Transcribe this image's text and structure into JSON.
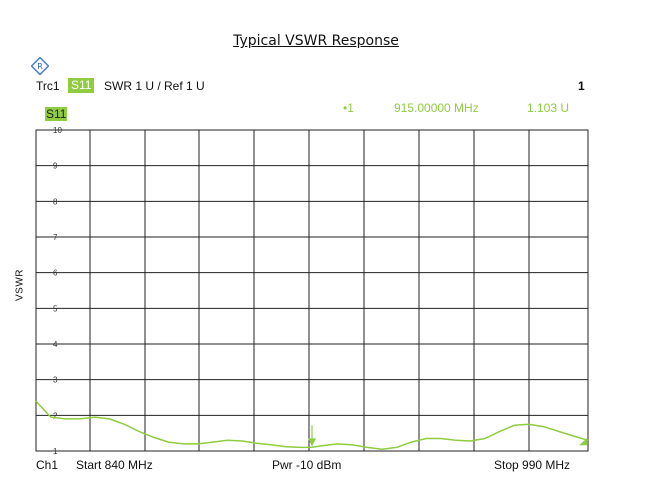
{
  "chart_data": {
    "type": "line",
    "title": "Typical VSWR Response",
    "ylabel": "VSWR",
    "xlabel": "",
    "xlim": [
      840,
      990
    ],
    "ylim": [
      1,
      10
    ],
    "yticks": [
      "10",
      "9",
      "8",
      "7",
      "6",
      "5",
      "4",
      "3",
      "2",
      "1"
    ],
    "series": [
      {
        "name": "S11",
        "color": "#8fcc3f",
        "x": [
          840,
          844,
          848,
          852,
          856,
          860,
          864,
          868,
          872,
          876,
          880,
          884,
          888,
          892,
          896,
          900,
          904,
          908,
          912,
          915,
          918,
          922,
          926,
          930,
          934,
          938,
          942,
          946,
          950,
          954,
          958,
          962,
          966,
          970,
          974,
          978,
          982,
          986,
          990
        ],
        "y": [
          2.4,
          1.95,
          1.9,
          1.9,
          1.95,
          1.9,
          1.75,
          1.55,
          1.38,
          1.25,
          1.2,
          1.2,
          1.25,
          1.3,
          1.28,
          1.22,
          1.17,
          1.12,
          1.1,
          1.103,
          1.15,
          1.2,
          1.17,
          1.1,
          1.05,
          1.1,
          1.25,
          1.35,
          1.35,
          1.3,
          1.28,
          1.35,
          1.55,
          1.72,
          1.75,
          1.68,
          1.55,
          1.42,
          1.3
        ]
      }
    ],
    "grid": true
  },
  "header": {
    "trace": "Trc1",
    "param": "S11",
    "format": "SWR  1 U /  Ref 1 U",
    "channel_num": "1"
  },
  "plot": {
    "trace_label": "S11"
  },
  "marker": {
    "id": "•1",
    "freq": "915.00000  MHz",
    "value": "1.103  U"
  },
  "footer": {
    "channel": "Ch1",
    "start": "Start  840 MHz",
    "power": "Pwr -10 dBm",
    "stop": "Stop  990 MHz"
  }
}
